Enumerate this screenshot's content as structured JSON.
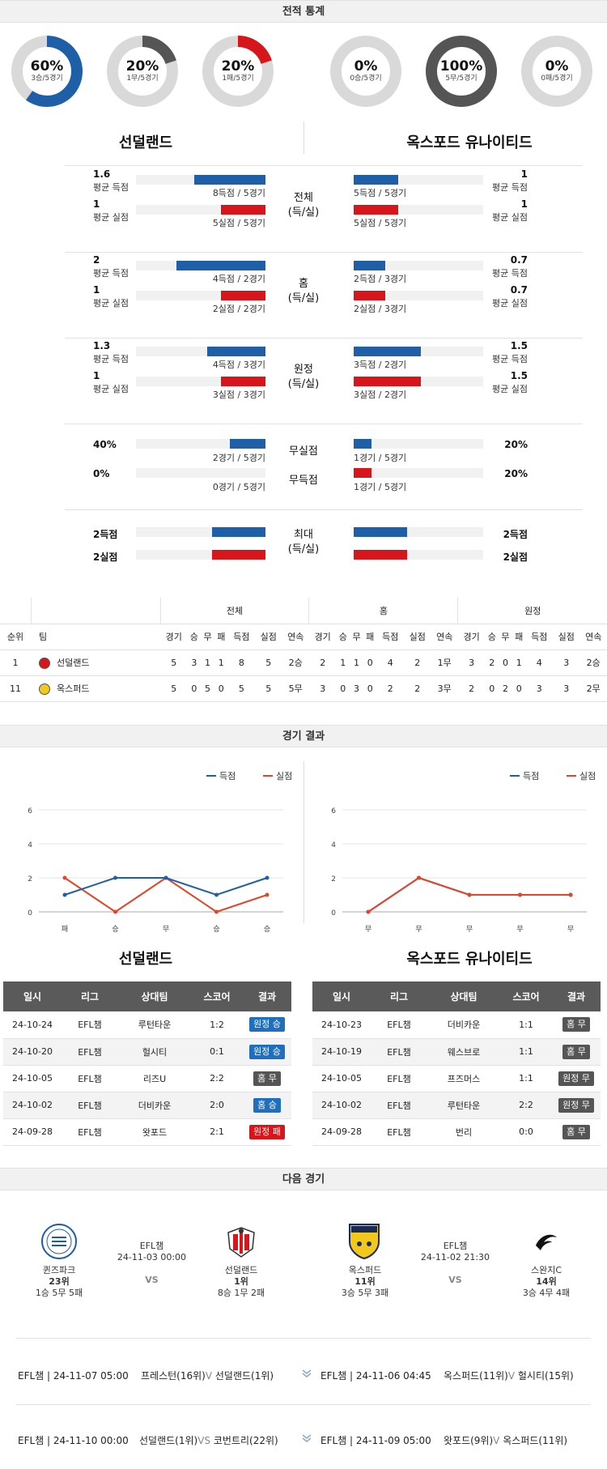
{
  "sections": {
    "record_stats": "전적 통계",
    "match_results": "경기 결과",
    "next_games": "다음 경기"
  },
  "colors": {
    "blue": "#1e5fa8",
    "red": "#d7161b",
    "gray": "#666666"
  },
  "donuts": [
    {
      "pct": "60%",
      "sub": "3승/5경기",
      "fraction": 0.6,
      "color": "#1e5fa8"
    },
    {
      "pct": "20%",
      "sub": "1무/5경기",
      "fraction": 0.2,
      "color": "#555555"
    },
    {
      "pct": "20%",
      "sub": "1패/5경기",
      "fraction": 0.2,
      "color": "#d7161b"
    },
    {
      "pct": "0%",
      "sub": "0승/5경기",
      "fraction": 0.0,
      "color": "#1e5fa8"
    },
    {
      "pct": "100%",
      "sub": "5무/5경기",
      "fraction": 1.0,
      "color": "#555555"
    },
    {
      "pct": "0%",
      "sub": "0패/5경기",
      "fraction": 0.0,
      "color": "#d7161b"
    }
  ],
  "teams": {
    "home": "선덜랜드",
    "away": "옥스포드 유나이티드"
  },
  "stats": {
    "avg_scored": "평균 득점",
    "avg_conceded": "평균 실점",
    "groups": [
      {
        "label1": "전체",
        "label2": "(득/실)",
        "left": [
          {
            "value": "1.6",
            "caption": "8득점 / 5경기",
            "fraction": 0.8
          },
          {
            "value": "1",
            "caption": "5실점 / 5경기",
            "fraction": 0.5
          }
        ],
        "right": [
          {
            "value": "1",
            "caption": "5득점 / 5경기",
            "fraction": 0.5
          },
          {
            "value": "1",
            "caption": "5실점 / 5경기",
            "fraction": 0.5
          }
        ]
      },
      {
        "label1": "홈",
        "label2": "(득/실)",
        "left": [
          {
            "value": "2",
            "caption": "4득점 / 2경기",
            "fraction": 1.0
          },
          {
            "value": "1",
            "caption": "2실점 / 2경기",
            "fraction": 0.5
          }
        ],
        "right": [
          {
            "value": "0.7",
            "caption": "2득점 / 3경기",
            "fraction": 0.35
          },
          {
            "value": "0.7",
            "caption": "2실점 / 3경기",
            "fraction": 0.35
          }
        ]
      },
      {
        "label1": "원정",
        "label2": "(득/실)",
        "left": [
          {
            "value": "1.3",
            "caption": "4득점 / 3경기",
            "fraction": 0.65
          },
          {
            "value": "1",
            "caption": "3실점 / 3경기",
            "fraction": 0.5
          }
        ],
        "right": [
          {
            "value": "1.5",
            "caption": "3득점 / 2경기",
            "fraction": 0.75
          },
          {
            "value": "1.5",
            "caption": "3실점 / 2경기",
            "fraction": 0.75
          }
        ]
      }
    ],
    "clean": {
      "label_cs": "무실점",
      "label_fts": "무득점",
      "left": [
        {
          "value": "40%",
          "caption": "2경기 / 5경기",
          "fraction": 0.4
        },
        {
          "value": "0%",
          "caption": "0경기 / 5경기",
          "fraction": 0.0
        }
      ],
      "right": [
        {
          "value": "20%",
          "caption": "1경기 / 5경기",
          "fraction": 0.2
        },
        {
          "value": "20%",
          "caption": "1경기 / 5경기",
          "fraction": 0.2
        }
      ]
    },
    "max": {
      "label1": "최대",
      "label2": "(득/실)",
      "left": [
        {
          "value": "2득점",
          "fraction": 0.6
        },
        {
          "value": "2실점",
          "fraction": 0.6
        }
      ],
      "right": [
        {
          "value": "2득점",
          "fraction": 0.6
        },
        {
          "value": "2실점",
          "fraction": 0.6
        }
      ]
    }
  },
  "standings": {
    "groups": [
      "전체",
      "홈",
      "원정"
    ],
    "headers": [
      "순위",
      "팀",
      "경기",
      "승",
      "무",
      "패",
      "득점",
      "실점",
      "연속",
      "경기",
      "승",
      "무",
      "패",
      "득점",
      "실점",
      "연속",
      "경기",
      "승",
      "무",
      "패",
      "득점",
      "실점",
      "연속"
    ],
    "rows": [
      {
        "rank": "1",
        "team": "선덜랜드",
        "cells": [
          "5",
          "3",
          "1",
          "1",
          "8",
          "5",
          "2승",
          "2",
          "1",
          "1",
          "0",
          "4",
          "2",
          "1무",
          "3",
          "2",
          "0",
          "1",
          "4",
          "3",
          "2승"
        ]
      },
      {
        "rank": "11",
        "team": "옥스퍼드",
        "cells": [
          "5",
          "0",
          "5",
          "0",
          "5",
          "5",
          "5무",
          "3",
          "0",
          "3",
          "0",
          "2",
          "2",
          "3무",
          "2",
          "0",
          "2",
          "0",
          "3",
          "3",
          "2무"
        ]
      }
    ]
  },
  "chart_data": [
    {
      "type": "line",
      "categories": [
        "패",
        "승",
        "무",
        "승",
        "승"
      ],
      "series": [
        {
          "name": "득점",
          "values": [
            1,
            2,
            2,
            1,
            2
          ]
        },
        {
          "name": "실점",
          "values": [
            2,
            0,
            2,
            0,
            1
          ]
        }
      ],
      "yticks": [
        "0",
        "2",
        "4",
        "6"
      ],
      "ylim": [
        0,
        6
      ],
      "legend": "top-right",
      "grid": true
    },
    {
      "type": "line",
      "categories": [
        "무",
        "무",
        "무",
        "무",
        "무"
      ],
      "series": [
        {
          "name": "득점",
          "values": [
            0,
            2,
            1,
            1,
            1
          ]
        },
        {
          "name": "실점",
          "values": [
            0,
            2,
            1,
            1,
            1
          ]
        }
      ],
      "yticks": [
        "0",
        "2",
        "4",
        "6"
      ],
      "ylim": [
        0,
        6
      ],
      "legend": "top-right",
      "grid": true
    }
  ],
  "results": {
    "headers": [
      "일시",
      "리그",
      "상대팀",
      "스코어",
      "결과"
    ],
    "home": {
      "title": "선덜랜드",
      "rows": [
        {
          "date": "24-10-24",
          "league": "EFL챔",
          "opp": "루턴타운",
          "score": "1:2",
          "result": "원정 승",
          "kind": "blue"
        },
        {
          "date": "24-10-20",
          "league": "EFL챔",
          "opp": "헐시티",
          "score": "0:1",
          "result": "원정 승",
          "kind": "blue"
        },
        {
          "date": "24-10-05",
          "league": "EFL챔",
          "opp": "리즈U",
          "score": "2:2",
          "result": "홈 무",
          "kind": "gray"
        },
        {
          "date": "24-10-02",
          "league": "EFL챔",
          "opp": "더비카운",
          "score": "2:0",
          "result": "홈 승",
          "kind": "blue"
        },
        {
          "date": "24-09-28",
          "league": "EFL챔",
          "opp": "왓포드",
          "score": "2:1",
          "result": "원정 패",
          "kind": "red"
        }
      ]
    },
    "away": {
      "title": "옥스포드 유나이티드",
      "rows": [
        {
          "date": "24-10-23",
          "league": "EFL챔",
          "opp": "더비카운",
          "score": "1:1",
          "result": "홈 무",
          "kind": "gray"
        },
        {
          "date": "24-10-19",
          "league": "EFL챔",
          "opp": "웨스브로",
          "score": "1:1",
          "result": "홈 무",
          "kind": "gray"
        },
        {
          "date": "24-10-05",
          "league": "EFL챔",
          "opp": "프즈머스",
          "score": "1:1",
          "result": "원정 무",
          "kind": "gray"
        },
        {
          "date": "24-10-02",
          "league": "EFL챔",
          "opp": "루턴타운",
          "score": "2:2",
          "result": "원정 무",
          "kind": "gray"
        },
        {
          "date": "24-09-28",
          "league": "EFL챔",
          "opp": "번리",
          "score": "0:0",
          "result": "홈 무",
          "kind": "gray"
        }
      ]
    }
  },
  "next": {
    "left": {
      "home_name": "퀸즈파크",
      "home_rank": "23위",
      "home_rec": "1승 5무 5패",
      "league": "EFL챔",
      "datetime": "24-11-03 00:00",
      "vs": "VS",
      "away_name": "선덜랜드",
      "away_rank": "1위",
      "away_rec": "8승 1무 2패"
    },
    "right": {
      "home_name": "옥스퍼드",
      "home_rank": "11위",
      "home_rec": "3승 5무 3패",
      "league": "EFL챔",
      "datetime": "24-11-02 21:30",
      "vs": "VS",
      "away_name": "스완지C",
      "away_rank": "14위",
      "away_rec": "3승 4무 4패"
    },
    "fixtures": [
      {
        "meta": "EFL챔 | 24-11-07 05:00",
        "home": "프레스턴(16위)",
        "vs": "V",
        "away": "선덜랜드(1위)"
      },
      {
        "meta": "EFL챔 | 24-11-06 04:45",
        "home": "옥스퍼드(11위)",
        "vs": "V",
        "away": "헐시티(15위)"
      },
      {
        "meta": "EFL챔 | 24-11-10 00:00",
        "home": "선덜랜드(1위)",
        "vs": "VS",
        "away": "코번트리(22위)"
      },
      {
        "meta": "EFL챔 | 24-11-09 05:00",
        "home": "왓포드(9위)",
        "vs": "V",
        "away": "옥스퍼드(11위)"
      }
    ]
  }
}
